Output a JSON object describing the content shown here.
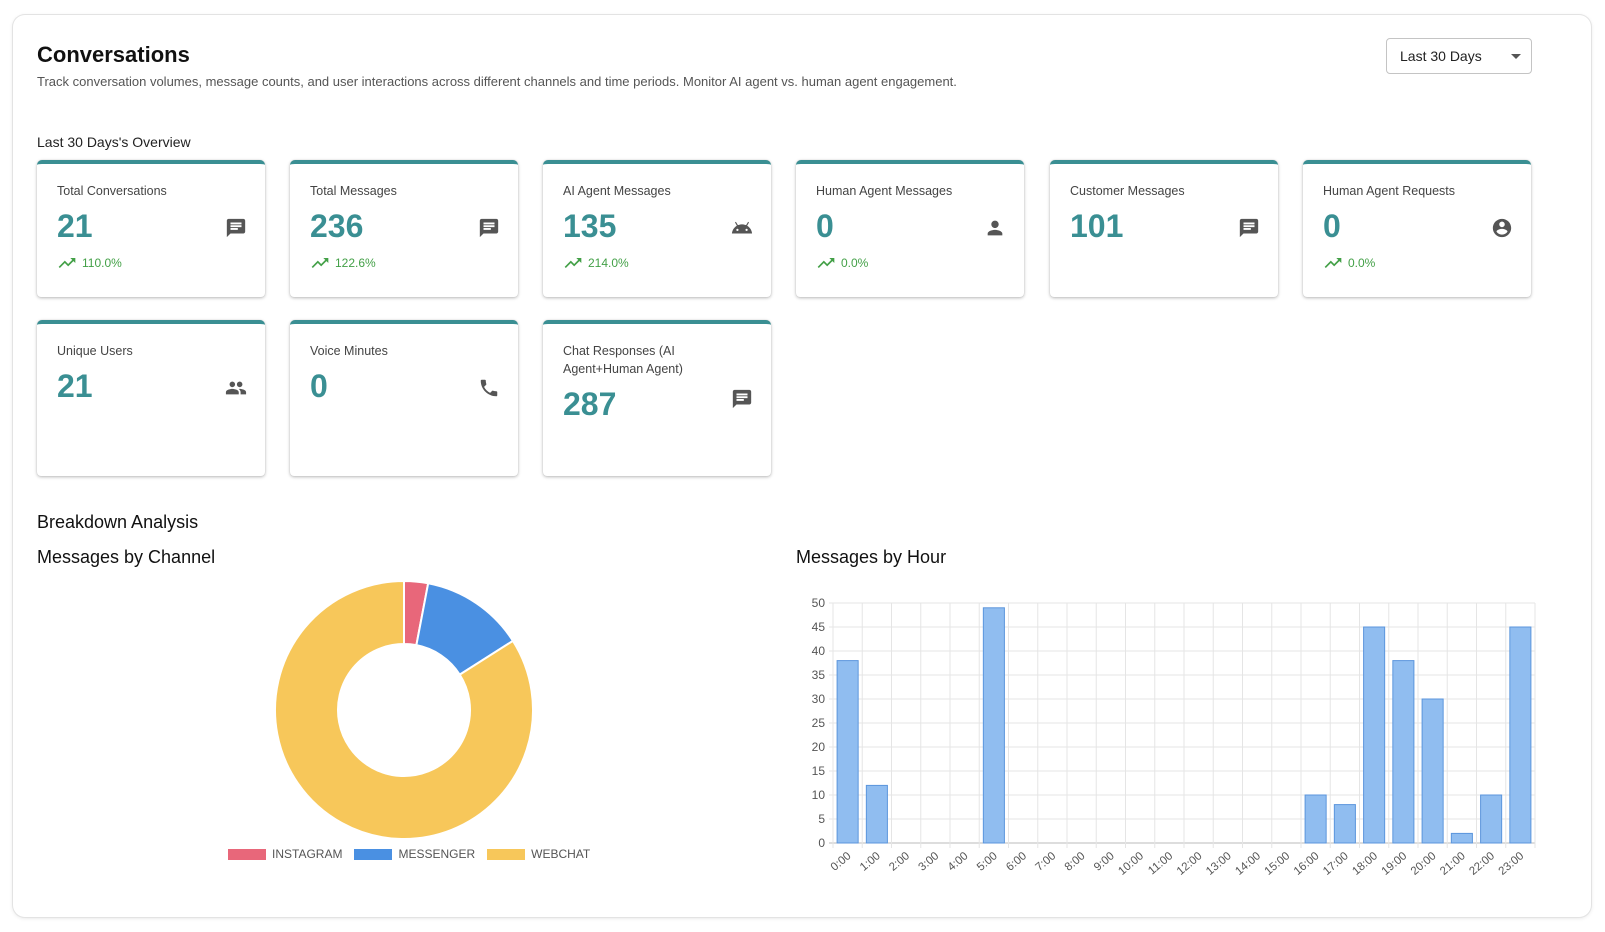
{
  "header": {
    "title": "Conversations",
    "subtitle": "Track conversation volumes, message counts, and user interactions across different channels and time periods. Monitor AI agent vs. human agent engagement.",
    "range_select": "Last 30 Days"
  },
  "overview": {
    "label": "Last 30 Days's Overview",
    "cards": [
      {
        "label": "Total Conversations",
        "value": "21",
        "icon": "chat-icon",
        "trend": "110.0%"
      },
      {
        "label": "Total Messages",
        "value": "236",
        "icon": "chat-icon",
        "trend": "122.6%"
      },
      {
        "label": "AI Agent Messages",
        "value": "135",
        "icon": "android-icon",
        "trend": "214.0%"
      },
      {
        "label": "Human Agent Messages",
        "value": "0",
        "icon": "person-icon",
        "trend": "0.0%"
      },
      {
        "label": "Customer Messages",
        "value": "101",
        "icon": "chat-icon",
        "trend": ""
      },
      {
        "label": "Human Agent Requests",
        "value": "0",
        "icon": "account-circle-icon",
        "trend": "0.0%"
      },
      {
        "label": "Unique Users",
        "value": "21",
        "icon": "people-icon",
        "trend": ""
      },
      {
        "label": "Voice Minutes",
        "value": "0",
        "icon": "phone-icon",
        "trend": ""
      },
      {
        "label": "Chat Responses (AI Agent+Human Agent)",
        "value": "287",
        "icon": "chat-icon",
        "trend": ""
      }
    ]
  },
  "breakdown": {
    "title": "Breakdown Analysis",
    "channel_title": "Messages by Channel",
    "hour_title": "Messages by Hour"
  },
  "colors": {
    "accent": "#3a8f93",
    "trend_up": "#43a047",
    "instagram": "#e8677a",
    "messenger": "#4a90e2",
    "webchat": "#f7c75a",
    "bar_fill": "#90bdf0",
    "bar_stroke": "#5b95dc"
  },
  "chart_data": [
    {
      "type": "pie",
      "title": "Messages by Channel",
      "categories": [
        "INSTAGRAM",
        "MESSENGER",
        "WEBCHAT"
      ],
      "values": [
        3,
        13,
        84
      ],
      "colors": [
        "#e8677a",
        "#4a90e2",
        "#f7c75a"
      ],
      "legend": "bottom"
    },
    {
      "type": "bar",
      "title": "Messages by Hour",
      "categories": [
        "0:00",
        "1:00",
        "2:00",
        "3:00",
        "4:00",
        "5:00",
        "6:00",
        "7:00",
        "8:00",
        "9:00",
        "10:00",
        "11:00",
        "12:00",
        "13:00",
        "14:00",
        "15:00",
        "16:00",
        "17:00",
        "18:00",
        "19:00",
        "20:00",
        "21:00",
        "22:00",
        "23:00"
      ],
      "values": [
        38,
        12,
        0,
        0,
        0,
        49,
        0,
        0,
        0,
        0,
        0,
        0,
        0,
        0,
        0,
        0,
        10,
        8,
        45,
        38,
        30,
        2,
        10,
        45
      ],
      "y_ticks": [
        "0",
        "5",
        "10",
        "15",
        "20",
        "25",
        "30",
        "35",
        "40",
        "45",
        "50"
      ],
      "ylim": [
        0,
        50
      ],
      "grid": true
    }
  ]
}
